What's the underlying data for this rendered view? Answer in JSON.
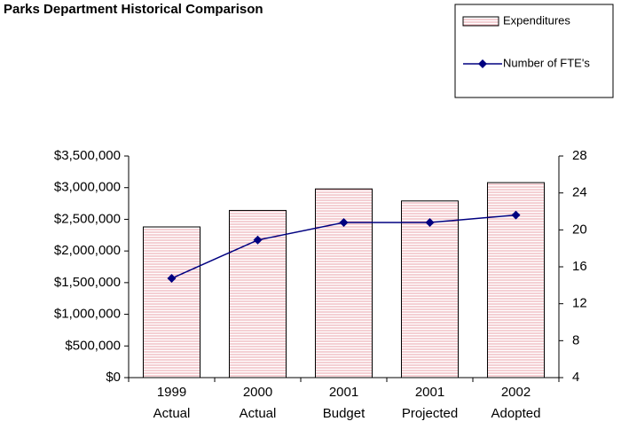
{
  "chart_data": {
    "type": "bar-line",
    "title": "Parks Department Historical Comparison",
    "categories": [
      [
        "1999",
        "Actual"
      ],
      [
        "2000",
        "Actual"
      ],
      [
        "2001",
        "Budget"
      ],
      [
        "2001",
        "Projected"
      ],
      [
        "2002",
        "Adopted"
      ]
    ],
    "series": [
      {
        "name": "Expenditures",
        "type": "bar",
        "color": "#f4c2c8",
        "values": [
          2380000,
          2640000,
          2980000,
          2790000,
          3080000
        ]
      },
      {
        "name": "Number of FTE's",
        "type": "line",
        "axis": "y2",
        "color": "#000080",
        "values": [
          14.75,
          18.9,
          20.8,
          20.8,
          21.6
        ]
      }
    ],
    "ylim": [
      0,
      3500000
    ],
    "yticks": [
      {
        "value": 0,
        "label": "$0"
      },
      {
        "value": 500000,
        "label": "$500,000"
      },
      {
        "value": 1000000,
        "label": "$1,000,000"
      },
      {
        "value": 1500000,
        "label": "$1,500,000"
      },
      {
        "value": 2000000,
        "label": "$2,000,000"
      },
      {
        "value": 2500000,
        "label": "$2,500,000"
      },
      {
        "value": 3000000,
        "label": "$3,000,000"
      },
      {
        "value": 3500000,
        "label": "$3,500,000"
      }
    ],
    "y2lim": [
      4,
      28
    ],
    "y2ticks": [
      4,
      8,
      12,
      16,
      20,
      24,
      28
    ],
    "grid": false,
    "legend": "top-right"
  }
}
